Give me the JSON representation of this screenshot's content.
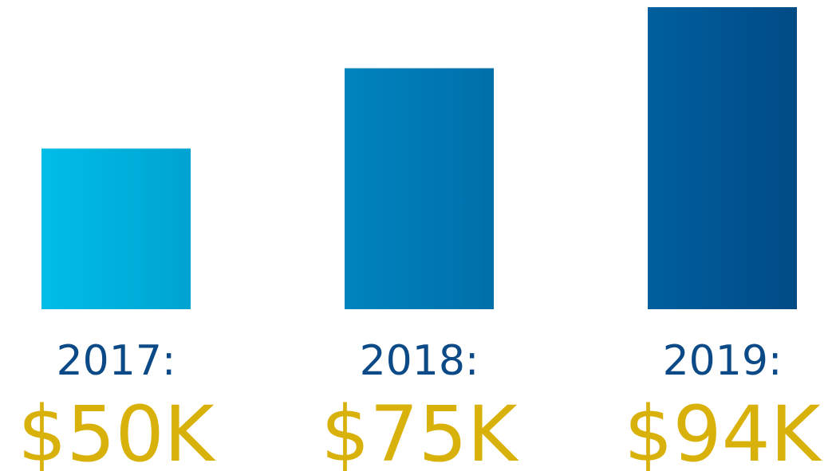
{
  "chart_data": {
    "type": "bar",
    "categories": [
      "2017:",
      "2018:",
      "2019:"
    ],
    "values": [
      50,
      75,
      94
    ],
    "value_labels": [
      "$50K",
      "$75K",
      "$94K"
    ],
    "title": "",
    "xlabel": "",
    "ylabel": "",
    "ylim": [
      0,
      94
    ],
    "grid": false,
    "legend": "none",
    "bar_gradients": [
      [
        "#00bde8",
        "#00a3d1"
      ],
      [
        "#0084bf",
        "#006fa9"
      ],
      [
        "#005f9e",
        "#004b86"
      ]
    ],
    "category_label_color": "#0b4a86",
    "value_label_color": "#d8b10b"
  }
}
